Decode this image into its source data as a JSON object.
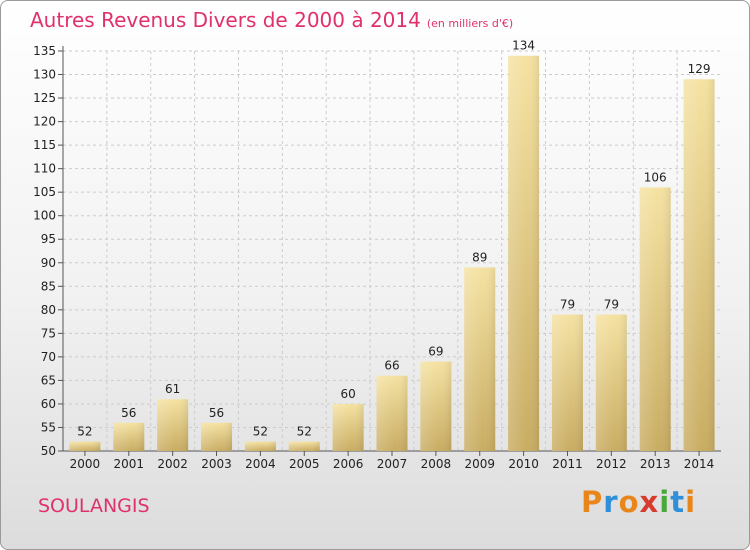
{
  "title": "Autres Revenus Divers de 2000 à 2014",
  "unit": "(en milliers d'€)",
  "commune": "SOULANGIS",
  "logo": {
    "letters": [
      "P",
      "r",
      "o",
      "x",
      "i",
      "t",
      "i"
    ],
    "colors": [
      "#e8861c",
      "#2f8fd8",
      "#e8861c",
      "#d83a2e",
      "#4aa83a",
      "#2f8fd8",
      "#e8861c"
    ]
  },
  "colors": {
    "title": "#e0306e",
    "bar_top": "#f5e2a2",
    "bar_bottom": "#c8ac62",
    "grid": "#cccccc"
  },
  "chart_data": {
    "type": "bar",
    "categories": [
      "2000",
      "2001",
      "2002",
      "2003",
      "2004",
      "2005",
      "2006",
      "2007",
      "2008",
      "2009",
      "2010",
      "2011",
      "2012",
      "2013",
      "2014"
    ],
    "values": [
      52,
      56,
      61,
      56,
      52,
      52,
      60,
      66,
      69,
      89,
      134,
      79,
      79,
      106,
      129
    ],
    "yticks": [
      50,
      55,
      60,
      65,
      70,
      75,
      80,
      85,
      90,
      95,
      100,
      105,
      110,
      115,
      120,
      125,
      130,
      135
    ],
    "ylim": [
      50,
      135
    ],
    "grid": true
  }
}
